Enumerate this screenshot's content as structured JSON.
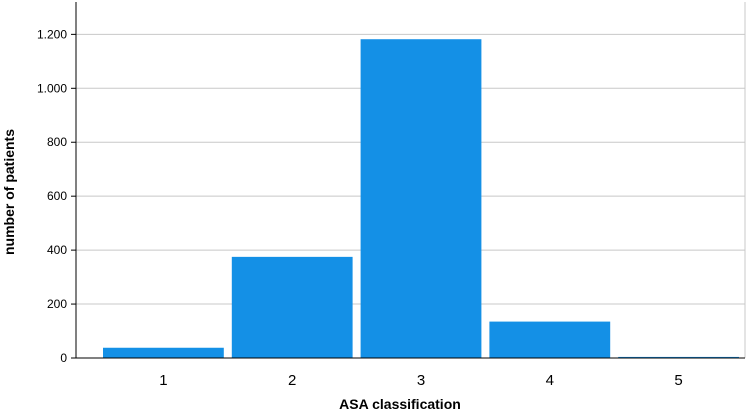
{
  "chart_data": {
    "type": "bar",
    "categories": [
      "1",
      "2",
      "3",
      "4",
      "5"
    ],
    "values": [
      38,
      375,
      1182,
      135,
      4
    ],
    "title": "",
    "xlabel": "ASA classification",
    "ylabel": "number of patients",
    "ylim": [
      0,
      1320
    ],
    "yticks": [
      0,
      200,
      400,
      600,
      800,
      1000,
      1200
    ],
    "ytick_labels": [
      "0",
      "200",
      "400",
      "600",
      "800",
      "1.000",
      "1.200"
    ],
    "grid": "horizontal",
    "bar_color": "#1490e6",
    "grid_color": "#c8c8c8"
  }
}
